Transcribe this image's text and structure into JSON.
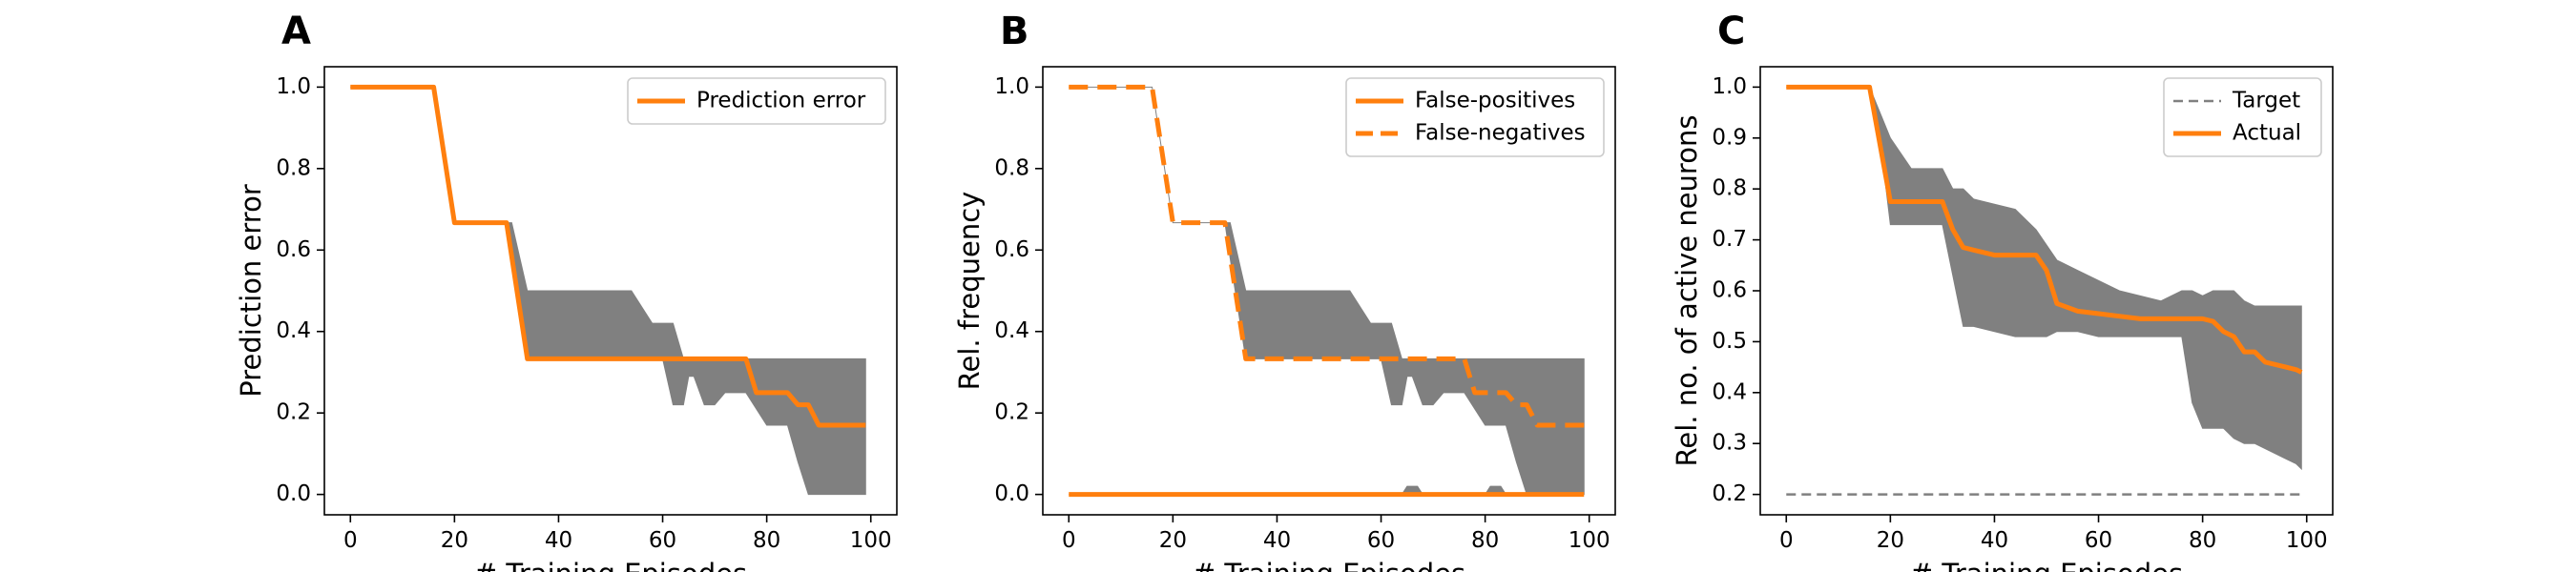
{
  "chart_data": [
    {
      "type": "line",
      "panel_label": "A",
      "title": "",
      "xlabel": "# Training Episodes",
      "ylabel": "Prediction error",
      "xlim": [
        -5,
        105
      ],
      "ylim": [
        -0.05,
        1.05
      ],
      "xticks": [
        0,
        20,
        40,
        60,
        80,
        100
      ],
      "xtick_labels": [
        "0",
        "20",
        "40",
        "60",
        "80",
        "100"
      ],
      "yticks": [
        0.0,
        0.2,
        0.4,
        0.6,
        0.8,
        1.0
      ],
      "ytick_labels": [
        "0.0",
        "0.2",
        "0.4",
        "0.6",
        "0.8",
        "1.0"
      ],
      "grid": false,
      "legend_position": "top-right",
      "legend": [
        {
          "label": "Prediction error",
          "color": "#ff7f0e",
          "style": "solid"
        }
      ],
      "band": {
        "color": "#808080",
        "x": [
          0,
          16,
          20,
          30,
          31,
          34,
          36,
          40,
          50,
          54,
          58,
          60,
          62,
          64,
          65,
          66,
          68,
          70,
          72,
          76,
          80,
          84,
          86,
          88,
          90,
          94,
          96,
          98,
          99
        ],
        "upper": [
          1.0,
          1.0,
          0.667,
          0.667,
          0.667,
          0.5,
          0.5,
          0.5,
          0.5,
          0.5,
          0.42,
          0.42,
          0.42,
          0.333,
          0.333,
          0.333,
          0.333,
          0.333,
          0.333,
          0.333,
          0.333,
          0.333,
          0.333,
          0.333,
          0.333,
          0.333,
          0.333,
          0.333,
          0.333
        ],
        "lower": [
          1.0,
          1.0,
          0.667,
          0.667,
          0.58,
          0.333,
          0.333,
          0.333,
          0.333,
          0.333,
          0.333,
          0.333,
          0.22,
          0.22,
          0.29,
          0.29,
          0.22,
          0.22,
          0.25,
          0.25,
          0.17,
          0.17,
          0.08,
          0.0,
          0.0,
          0.0,
          0.0,
          0.0,
          0.0
        ]
      },
      "series": [
        {
          "label": "Prediction error",
          "color": "#ff7f0e",
          "style": "solid",
          "x": [
            0,
            16,
            20,
            30,
            34,
            76,
            78,
            80,
            84,
            86,
            88,
            90,
            99
          ],
          "y": [
            1.0,
            1.0,
            0.667,
            0.667,
            0.333,
            0.333,
            0.25,
            0.25,
            0.25,
            0.22,
            0.22,
            0.17,
            0.17
          ]
        }
      ]
    },
    {
      "type": "line",
      "panel_label": "B",
      "title": "",
      "xlabel": "# Training Episodes",
      "ylabel": "Rel. frequency",
      "xlim": [
        -5,
        105
      ],
      "ylim": [
        -0.05,
        1.05
      ],
      "xticks": [
        0,
        20,
        40,
        60,
        80,
        100
      ],
      "xtick_labels": [
        "0",
        "20",
        "40",
        "60",
        "80",
        "100"
      ],
      "yticks": [
        0.0,
        0.2,
        0.4,
        0.6,
        0.8,
        1.0
      ],
      "ytick_labels": [
        "0.0",
        "0.2",
        "0.4",
        "0.6",
        "0.8",
        "1.0"
      ],
      "grid": false,
      "legend_position": "top-right",
      "legend": [
        {
          "label": "False-positives",
          "color": "#ff7f0e",
          "style": "solid"
        },
        {
          "label": "False-negatives",
          "color": "#ff7f0e",
          "style": "dashed"
        }
      ],
      "bands": [
        {
          "color": "#808080",
          "x": [
            0,
            16,
            20,
            30,
            31,
            34,
            36,
            40,
            50,
            54,
            58,
            60,
            62,
            64,
            65,
            66,
            68,
            70,
            72,
            76,
            80,
            84,
            86,
            88,
            90,
            94,
            96,
            98,
            99
          ],
          "upper": [
            1.0,
            1.0,
            0.667,
            0.667,
            0.667,
            0.5,
            0.5,
            0.5,
            0.5,
            0.5,
            0.42,
            0.42,
            0.42,
            0.333,
            0.333,
            0.333,
            0.333,
            0.333,
            0.333,
            0.333,
            0.333,
            0.333,
            0.333,
            0.333,
            0.333,
            0.333,
            0.333,
            0.333,
            0.333
          ],
          "lower": [
            1.0,
            1.0,
            0.667,
            0.667,
            0.58,
            0.333,
            0.333,
            0.333,
            0.333,
            0.333,
            0.333,
            0.333,
            0.22,
            0.22,
            0.29,
            0.29,
            0.22,
            0.22,
            0.25,
            0.25,
            0.17,
            0.17,
            0.08,
            0.0,
            0.0,
            0.0,
            0.0,
            0.0,
            0.0
          ]
        },
        {
          "color": "#808080",
          "x": [
            0,
            64,
            65,
            66,
            67,
            68,
            80,
            81,
            82,
            83,
            84,
            99
          ],
          "upper": [
            0,
            0,
            0.02,
            0.02,
            0.02,
            0,
            0,
            0.02,
            0.02,
            0.02,
            0,
            0
          ],
          "lower": [
            0,
            0,
            0,
            0,
            0,
            0,
            0,
            0,
            0,
            0,
            0,
            0
          ]
        }
      ],
      "series": [
        {
          "label": "False-positives",
          "color": "#ff7f0e",
          "style": "solid",
          "x": [
            0,
            99
          ],
          "y": [
            0.0,
            0.0
          ]
        },
        {
          "label": "False-negatives",
          "color": "#ff7f0e",
          "style": "dashed",
          "x": [
            0,
            16,
            20,
            30,
            34,
            76,
            78,
            84,
            86,
            88,
            90,
            99
          ],
          "y": [
            1.0,
            1.0,
            0.667,
            0.667,
            0.333,
            0.333,
            0.25,
            0.25,
            0.22,
            0.22,
            0.17,
            0.17
          ]
        }
      ]
    },
    {
      "type": "line",
      "panel_label": "C",
      "title": "",
      "xlabel": "# Training Episodes",
      "ylabel": "Rel. no. of active neurons",
      "xlim": [
        -5,
        105
      ],
      "ylim": [
        0.16,
        1.04
      ],
      "xticks": [
        0,
        20,
        40,
        60,
        80,
        100
      ],
      "xtick_labels": [
        "0",
        "20",
        "40",
        "60",
        "80",
        "100"
      ],
      "yticks": [
        0.2,
        0.3,
        0.4,
        0.5,
        0.6,
        0.7,
        0.8,
        0.9,
        1.0
      ],
      "ytick_labels": [
        "0.2",
        "0.3",
        "0.4",
        "0.5",
        "0.6",
        "0.7",
        "0.8",
        "0.9",
        "1.0"
      ],
      "grid": false,
      "legend_position": "top-right",
      "legend": [
        {
          "label": "Target",
          "color": "#808080",
          "style": "dashed"
        },
        {
          "label": "Actual",
          "color": "#ff7f0e",
          "style": "solid"
        }
      ],
      "band": {
        "color": "#808080",
        "x": [
          0,
          16,
          18,
          20,
          24,
          28,
          30,
          32,
          34,
          36,
          40,
          44,
          48,
          50,
          52,
          56,
          60,
          64,
          68,
          72,
          76,
          78,
          80,
          82,
          84,
          86,
          88,
          90,
          94,
          96,
          98,
          99
        ],
        "upper": [
          1.0,
          1.0,
          0.95,
          0.9,
          0.84,
          0.84,
          0.84,
          0.8,
          0.8,
          0.78,
          0.77,
          0.76,
          0.72,
          0.69,
          0.66,
          0.64,
          0.62,
          0.6,
          0.59,
          0.58,
          0.6,
          0.6,
          0.59,
          0.6,
          0.6,
          0.6,
          0.58,
          0.57,
          0.57,
          0.57,
          0.57,
          0.57
        ],
        "lower": [
          1.0,
          1.0,
          0.9,
          0.73,
          0.73,
          0.73,
          0.73,
          0.63,
          0.53,
          0.53,
          0.52,
          0.51,
          0.51,
          0.51,
          0.52,
          0.52,
          0.51,
          0.51,
          0.51,
          0.51,
          0.51,
          0.38,
          0.33,
          0.33,
          0.33,
          0.31,
          0.3,
          0.3,
          0.28,
          0.27,
          0.26,
          0.25
        ]
      },
      "series": [
        {
          "label": "Target",
          "color": "#808080",
          "style": "dashed",
          "x": [
            0,
            99
          ],
          "y": [
            0.2,
            0.2
          ]
        },
        {
          "label": "Actual",
          "color": "#ff7f0e",
          "style": "solid",
          "x": [
            0,
            16,
            20,
            24,
            28,
            30,
            32,
            34,
            36,
            40,
            44,
            48,
            50,
            52,
            56,
            60,
            64,
            68,
            72,
            76,
            80,
            82,
            84,
            86,
            88,
            90,
            92,
            94,
            96,
            98,
            99
          ],
          "y": [
            1.0,
            1.0,
            0.775,
            0.775,
            0.775,
            0.775,
            0.72,
            0.685,
            0.68,
            0.67,
            0.67,
            0.67,
            0.64,
            0.575,
            0.56,
            0.555,
            0.55,
            0.545,
            0.545,
            0.545,
            0.545,
            0.54,
            0.52,
            0.51,
            0.48,
            0.48,
            0.46,
            0.455,
            0.45,
            0.445,
            0.44
          ]
        }
      ]
    }
  ]
}
